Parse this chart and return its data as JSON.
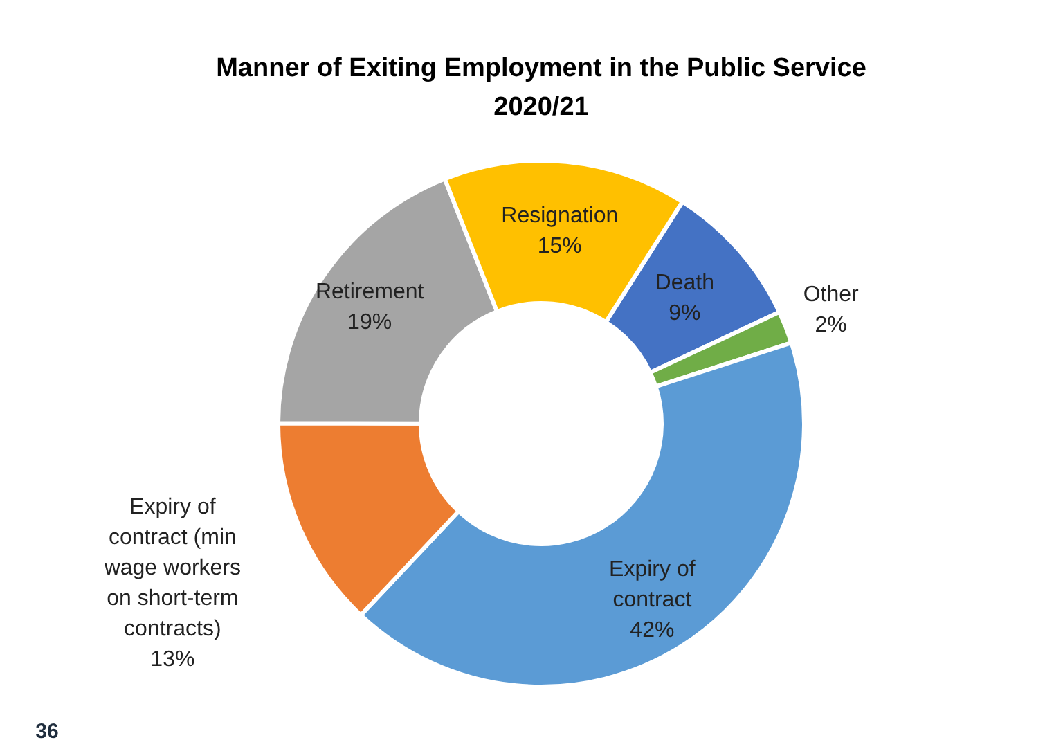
{
  "chart_data": {
    "type": "donut",
    "title": "Manner of Exiting Employment in the Public Service\n2020/21",
    "categories": [
      "Death",
      "Other",
      "Expiry of contract",
      "Expiry of contract (min wage workers on short-term contracts)",
      "Retirement",
      "Resignation"
    ],
    "values": [
      9,
      2,
      42,
      13,
      19,
      15
    ],
    "value_labels": [
      "9%",
      "2%",
      "42%",
      "13%",
      "19%",
      "15%"
    ],
    "colors": [
      "#4472c4",
      "#70ad47",
      "#5b9bd5",
      "#ed7d31",
      "#a5a5a5",
      "#ffc000"
    ],
    "data_labels": true,
    "annotations": [
      "36"
    ]
  }
}
